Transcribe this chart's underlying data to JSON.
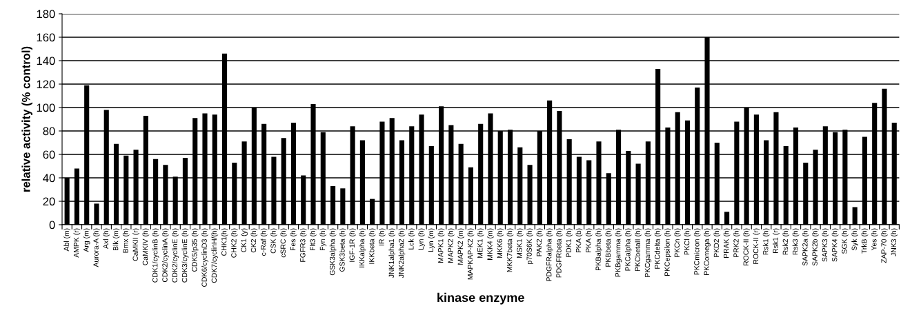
{
  "chart_data": {
    "type": "bar",
    "xlabel": "kinase enzyme",
    "ylabel": "relative activity (% control)",
    "categories": [
      "Abl (m)",
      "AMPK (r)",
      "Arg (m)",
      "Aurora-A (h)",
      "Axl (h)",
      "Blk (m)",
      "Bmx (h)",
      "CaMKII (r)",
      "CaMKIV (h)",
      "CDK1/cyclinB (h)",
      "CDK2/cyclinA (h)",
      "CDK2/cyclinE (h)",
      "CDK3/cyclinE (h)",
      "CDK5/p35 (h)",
      "CDK6/cyclinD3 (h)",
      "CDK7/cyclinH/(h)",
      "CHK1(h)",
      "CHK2 (h)",
      "CK1 (y)",
      "CK2 (h)",
      "c-Raf (h)",
      "CSK (h)",
      "cSRC (h)",
      "Fes (h)",
      "FGFR3 (h)",
      "Flt3 (h)",
      "Fyn (h)",
      "GSK3alpha (h)",
      "GSK3beta (h)",
      "IGF-1R (h)",
      "IKKalpha (h)",
      "IKKbeta (h)",
      "IR (h)",
      "JNK1alpha1 (h)",
      "JNK2alpha2 (h)",
      "Lck (h)",
      "Lyn (h)",
      "Lyn (m)",
      "MAPK1 (h)",
      "MAPK2 (h)",
      "MAPK2 (m)",
      "MAPKAP-K2 (h)",
      "MEK1 (h)",
      "MKK4 (m)",
      "MKK6 (h)",
      "MKK7beta (h)",
      "MSK1 (h)",
      "p70S6K (h)",
      "PAK2 (h)",
      "PDGFRalpha (h)",
      "PDGFRbeta (h)",
      "PDK1 (h)",
      "PKA (b)",
      "PKA (h)",
      "PKBalpha (h)",
      "PKBbeta (h)",
      "PKBgamma (h)",
      "PKCalpha (h)",
      "PKCbetaII (h)",
      "PKCgamma (h)",
      "PKCdelta (h)",
      "PKCepsilon (h)",
      "PKCn (h)",
      "PKCl (h)",
      "PKCmicron (h)",
      "PKComega (h)",
      "PKD2 (h)",
      "PRAK (h)",
      "PRK2 (h)",
      "ROCK-II (h)",
      "ROCK-II (r)",
      "Rsk1 (h)",
      "Rsk1 (r)",
      "Rsk2 (h)",
      "Rsk3 (h)",
      "SAPK2a (h)",
      "SAPK2b (h)",
      "SAPK3 (h)",
      "SAPK4 (h)",
      "SGK (h)",
      "Syk (h)",
      "TrkB (h)",
      "Yes (h)",
      "ZAP-70 (h)",
      "JNK3 (h)"
    ],
    "values": [
      40,
      48,
      119,
      18,
      98,
      69,
      59,
      64,
      93,
      56,
      51,
      41,
      57,
      91,
      95,
      94,
      146,
      53,
      71,
      100,
      86,
      58,
      74,
      87,
      42,
      103,
      79,
      33,
      31,
      84,
      72,
      22,
      88,
      91,
      72,
      84,
      94,
      67,
      101,
      85,
      69,
      49,
      86,
      95,
      80,
      81,
      66,
      51,
      80,
      106,
      97,
      73,
      58,
      55,
      71,
      44,
      81,
      63,
      52,
      71,
      133,
      83,
      96,
      89,
      117,
      160,
      70,
      11,
      88,
      100,
      94,
      72,
      96,
      67,
      83,
      53,
      64,
      84,
      79,
      81,
      15,
      75,
      104,
      116,
      87
    ],
    "color": "#000000",
    "ylim": [
      0,
      180
    ],
    "yticks": [
      0,
      20,
      40,
      60,
      80,
      100,
      120,
      140,
      160,
      180
    ],
    "grid": "y",
    "legend": false
  }
}
